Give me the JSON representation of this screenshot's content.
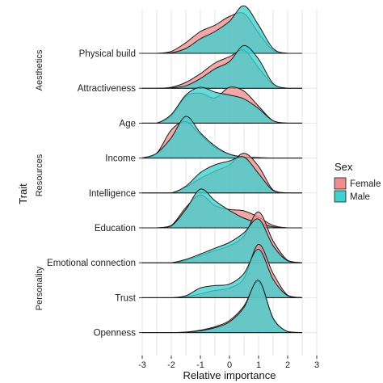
{
  "chart_data": {
    "type": "ridgeline",
    "xlabel": "Relative importance",
    "ylabel": "Trait",
    "xlim": [
      -3,
      3
    ],
    "x_ticks": [
      "-3",
      "-2",
      "-1",
      "0",
      "1",
      "2",
      "3"
    ],
    "grid": true,
    "legend": {
      "title": "Sex",
      "placement": "right",
      "entries": [
        {
          "label": "Female",
          "color": "#f08e8e"
        },
        {
          "label": "Male",
          "color": "#3fd0cf"
        }
      ]
    },
    "groups": [
      {
        "label": "Aesthetics",
        "traits": [
          "Physical build",
          "Attractiveness",
          "Age"
        ]
      },
      {
        "label": "Resources",
        "traits": [
          "Income",
          "Intelligence",
          "Education"
        ]
      },
      {
        "label": "Personality",
        "traits": [
          "Emotional connection",
          "Trust",
          "Openness"
        ]
      }
    ],
    "density_x": [
      -3.0,
      -2.5,
      -2.0,
      -1.5,
      -1.0,
      -0.5,
      0.0,
      0.5,
      1.0,
      1.5,
      2.0,
      2.5
    ],
    "ridges": [
      {
        "trait": "Physical build",
        "female": [
          0,
          0,
          0.04,
          0.22,
          0.45,
          0.58,
          0.76,
          0.82,
          0.42,
          0.06,
          0,
          0
        ],
        "male": [
          0,
          0,
          0.01,
          0.1,
          0.3,
          0.45,
          0.66,
          0.98,
          0.58,
          0.1,
          0,
          0
        ]
      },
      {
        "trait": "Attractiveness",
        "female": [
          0,
          0,
          0.02,
          0.12,
          0.3,
          0.52,
          0.65,
          0.78,
          0.42,
          0.08,
          0,
          0
        ],
        "male": [
          0,
          0,
          0.01,
          0.05,
          0.2,
          0.4,
          0.55,
          0.88,
          0.6,
          0.1,
          0,
          0
        ]
      },
      {
        "trait": "Age",
        "female": [
          0,
          0,
          0.15,
          0.55,
          0.62,
          0.52,
          0.74,
          0.66,
          0.35,
          0.05,
          0,
          0
        ],
        "male": [
          0,
          0,
          0.18,
          0.58,
          0.74,
          0.64,
          0.58,
          0.5,
          0.3,
          0.05,
          0,
          0
        ]
      },
      {
        "trait": "Income",
        "female": [
          0,
          0.1,
          0.58,
          0.75,
          0.48,
          0.22,
          0.08,
          0.02,
          0,
          0,
          0,
          0
        ],
        "male": [
          0,
          0.1,
          0.42,
          0.86,
          0.52,
          0.25,
          0.08,
          0.02,
          0.01,
          0,
          0,
          0
        ]
      },
      {
        "trait": "Intelligence",
        "female": [
          0,
          0,
          0,
          0.12,
          0.3,
          0.45,
          0.58,
          0.82,
          0.55,
          0.06,
          0,
          0
        ],
        "male": [
          0,
          0,
          0,
          0.14,
          0.42,
          0.58,
          0.66,
          0.74,
          0.4,
          0.05,
          0,
          0
        ]
      },
      {
        "trait": "Education",
        "female": [
          0,
          0,
          0.05,
          0.42,
          0.68,
          0.46,
          0.38,
          0.35,
          0.22,
          0.05,
          0,
          0
        ],
        "male": [
          0,
          0,
          0.04,
          0.38,
          0.8,
          0.56,
          0.36,
          0.2,
          0.1,
          0.02,
          0,
          0
        ]
      },
      {
        "trait": "Emotional connection",
        "female": [
          0,
          0,
          0,
          0.05,
          0.15,
          0.25,
          0.35,
          0.55,
          1.05,
          0.45,
          0.05,
          0
        ],
        "male": [
          0,
          0,
          0,
          0.07,
          0.18,
          0.3,
          0.42,
          0.62,
          0.9,
          0.35,
          0.04,
          0
        ]
      },
      {
        "trait": "Trust",
        "female": [
          0,
          0,
          0,
          0.02,
          0.08,
          0.15,
          0.2,
          0.4,
          1.1,
          0.5,
          0.05,
          0
        ],
        "male": [
          0,
          0,
          0,
          0.04,
          0.2,
          0.25,
          0.28,
          0.5,
          1.0,
          0.38,
          0.04,
          0
        ]
      },
      {
        "trait": "Openness",
        "female": [
          0,
          0,
          0,
          0.01,
          0.05,
          0.12,
          0.25,
          0.55,
          1.05,
          0.28,
          0.02,
          0
        ],
        "male": [
          0,
          0,
          0,
          0.01,
          0.04,
          0.1,
          0.22,
          0.52,
          1.08,
          0.3,
          0.02,
          0
        ]
      }
    ]
  }
}
